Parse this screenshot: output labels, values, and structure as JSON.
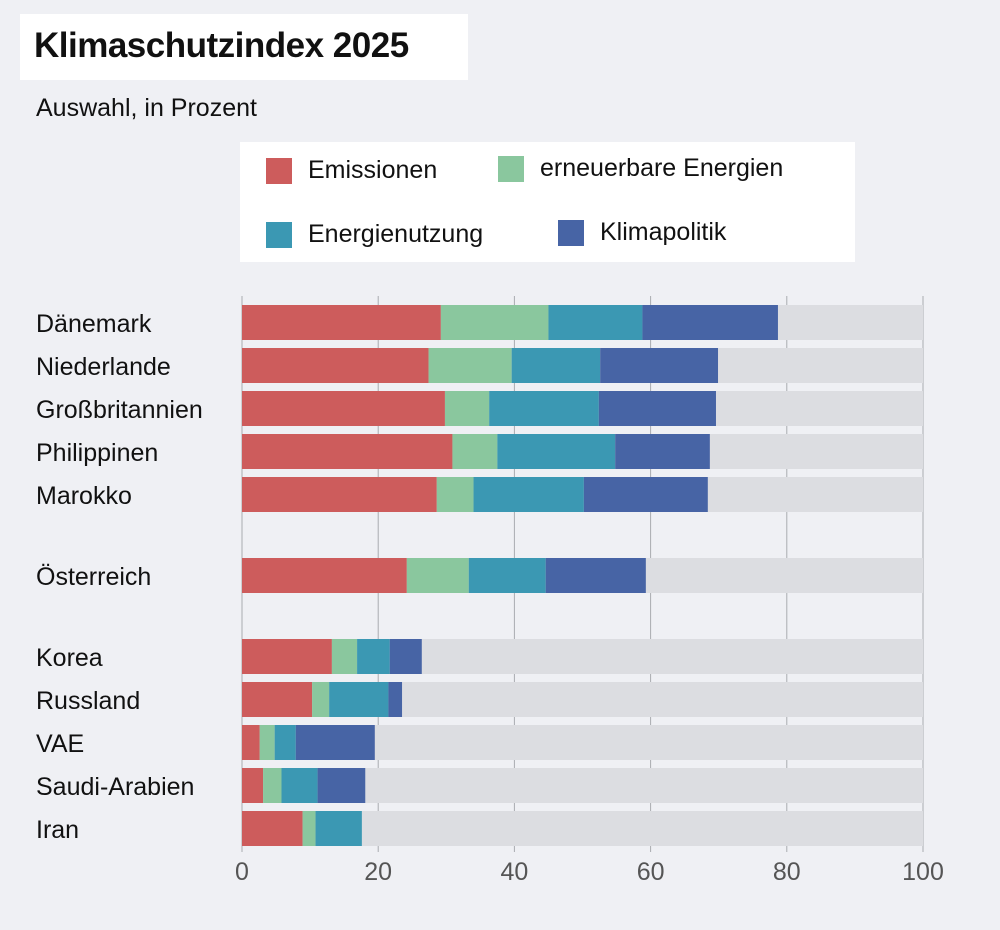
{
  "chart_data": {
    "type": "bar",
    "orientation": "horizontal",
    "stacked": true,
    "title": "Klimaschutzindex 2025",
    "subtitle": "Auswahl, in Prozent",
    "xlabel": "",
    "ylabel": "",
    "xlim": [
      0,
      100
    ],
    "xticks": [
      "0",
      "20",
      "40",
      "60",
      "80",
      "100"
    ],
    "grid": true,
    "legend_placement": "top",
    "categories": [
      "Dänemark",
      "Niederlande",
      "Großbritannien",
      "Philippinen",
      "Marokko",
      "Österreich",
      "Korea",
      "Russland",
      "VAE",
      "Saudi-Arabien",
      "Iran"
    ],
    "groups": [
      [
        0,
        1,
        2,
        3,
        4
      ],
      [
        5
      ],
      [
        6,
        7,
        8,
        9,
        10
      ]
    ],
    "remainder_color": "#dcdde1",
    "series": [
      {
        "name": "Emissionen",
        "color": "#cd5c5c",
        "values": [
          29.2,
          27.4,
          29.8,
          30.9,
          28.6,
          24.2,
          13.2,
          10.3,
          2.6,
          3.1,
          8.9
        ]
      },
      {
        "name": "erneuerbare Energien",
        "color": "#8ac79e",
        "values": [
          15.8,
          12.2,
          6.5,
          6.6,
          5.4,
          9.1,
          3.7,
          2.5,
          2.2,
          2.7,
          1.9
        ]
      },
      {
        "name": "Energienutzung",
        "color": "#3b98b3",
        "values": [
          13.8,
          13.0,
          16.1,
          17.3,
          16.2,
          11.3,
          4.8,
          8.7,
          3.1,
          5.3,
          6.8
        ]
      },
      {
        "name": "Klimapolitik",
        "color": "#4764a5",
        "values": [
          19.9,
          17.3,
          17.2,
          13.9,
          18.2,
          14.7,
          4.7,
          2.0,
          11.6,
          7.0,
          0
        ]
      }
    ]
  }
}
